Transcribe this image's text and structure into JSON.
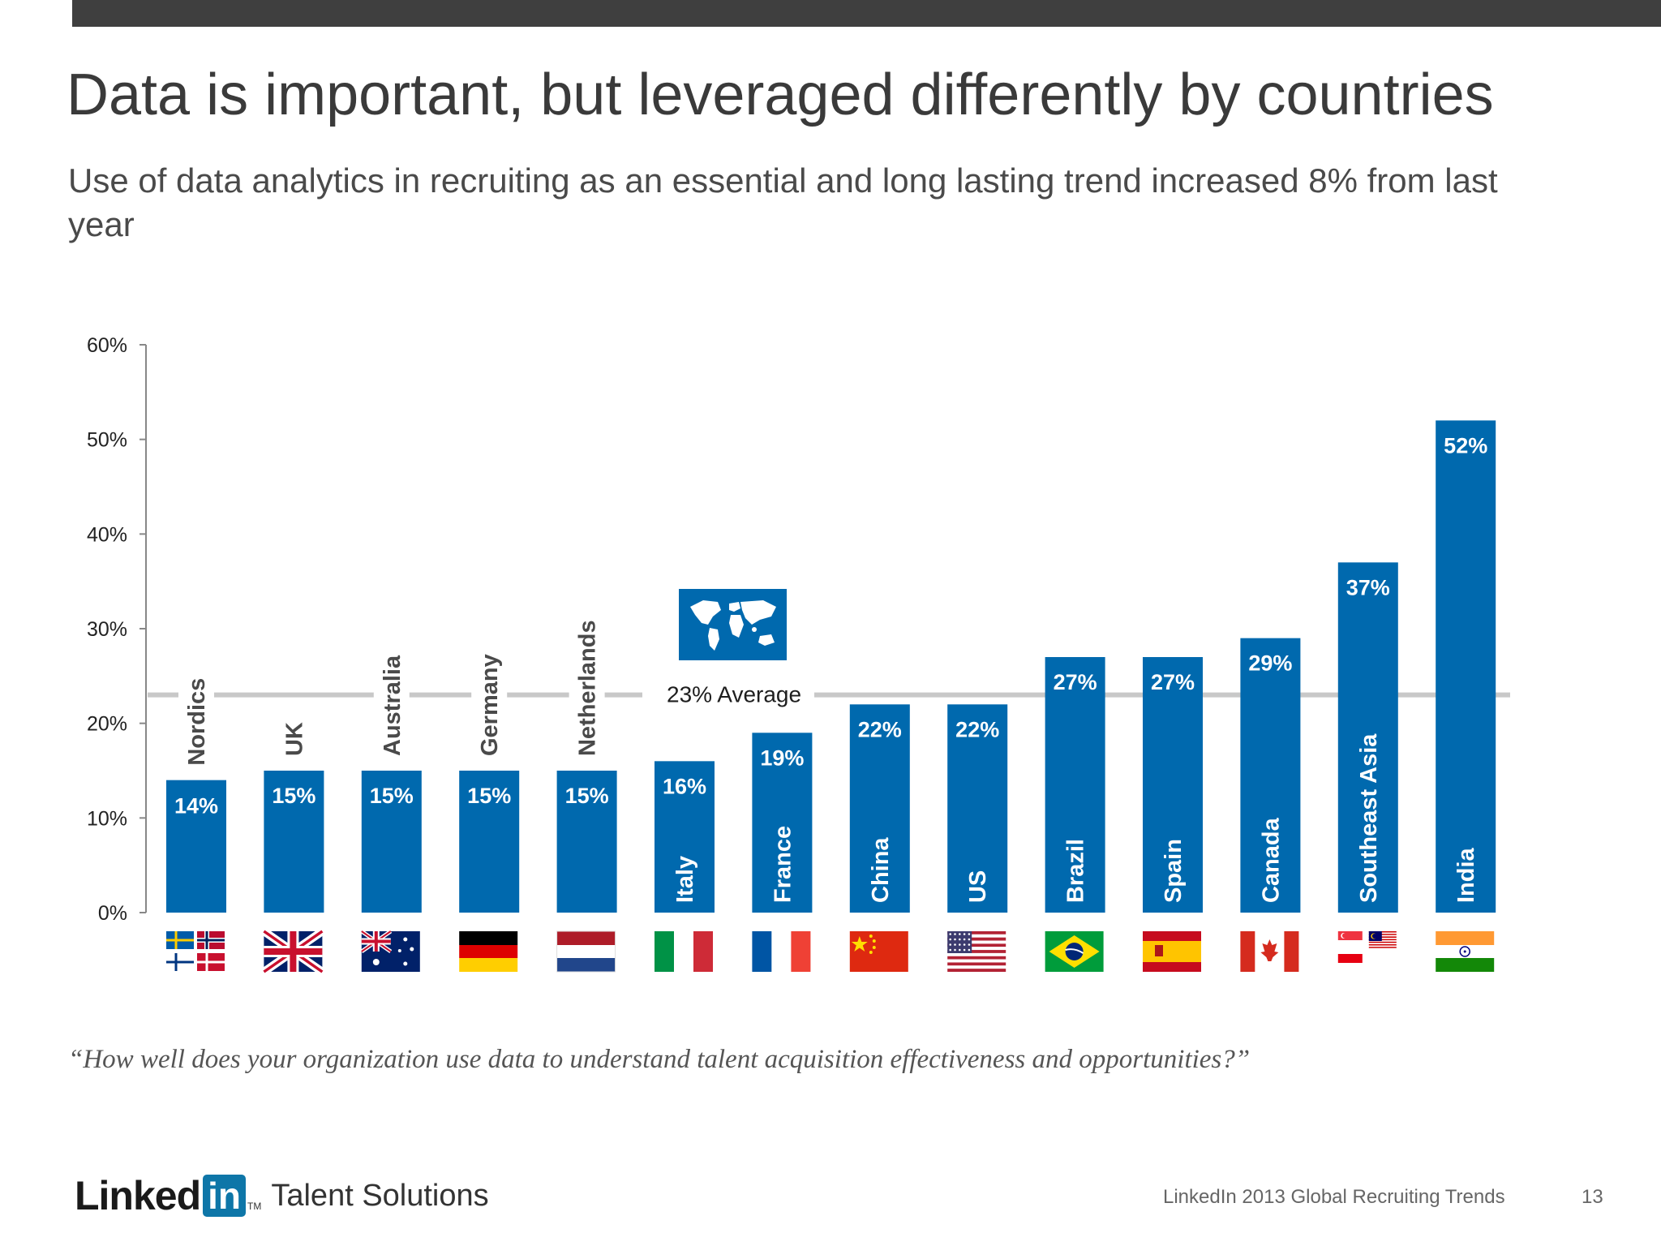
{
  "slide": {
    "title": "Data is important, but leveraged differently by countries",
    "subtitle": "Use of data analytics in recruiting as an essential and long lasting trend increased 8% from last year",
    "question": "“How well does your organization use data to understand talent acquisition effectiveness and opportunities?”",
    "logo": {
      "linked": "Linked",
      "in": "in",
      "tm": "TM",
      "product": "Talent Solutions"
    },
    "footer_source": "LinkedIn 2013 Global Recruiting Trends",
    "page_number": "13"
  },
  "colors": {
    "bar": "#0069ae",
    "bar_text": "#ffffff",
    "label_outside": "#4a4a4a",
    "average_line": "#c8c8c8",
    "axis": "#888888",
    "topbar": "#3f3f3f"
  },
  "chart_data": {
    "type": "bar",
    "title": "",
    "xlabel": "",
    "ylabel": "",
    "ylim": [
      0,
      60
    ],
    "yticks": [
      0,
      10,
      20,
      30,
      40,
      50,
      60
    ],
    "ytick_labels": [
      "0%",
      "10%",
      "20%",
      "30%",
      "40%",
      "50%",
      "60%"
    ],
    "grid": false,
    "categories": [
      "Nordics",
      "UK",
      "Australia",
      "Germany",
      "Netherlands",
      "Italy",
      "France",
      "China",
      "US",
      "Brazil",
      "Spain",
      "Canada",
      "Southeast Asia",
      "India"
    ],
    "values": [
      14,
      15,
      15,
      15,
      15,
      16,
      19,
      22,
      22,
      27,
      27,
      29,
      37,
      52
    ],
    "value_labels": [
      "14%",
      "15%",
      "15%",
      "15%",
      "15%",
      "16%",
      "19%",
      "22%",
      "22%",
      "27%",
      "27%",
      "29%",
      "37%",
      "52%"
    ],
    "average": {
      "value": 23,
      "label": "23% Average"
    },
    "flag_icons": [
      "nordics-flags-icon",
      "uk-flag-icon",
      "australia-flag-icon",
      "germany-flag-icon",
      "netherlands-flag-icon",
      "italy-flag-icon",
      "france-flag-icon",
      "china-flag-icon",
      "us-flag-icon",
      "brazil-flag-icon",
      "spain-flag-icon",
      "canada-flag-icon",
      "southeast-asia-flags-icon",
      "india-flag-icon"
    ],
    "world_map_icon": "world-map-icon"
  }
}
